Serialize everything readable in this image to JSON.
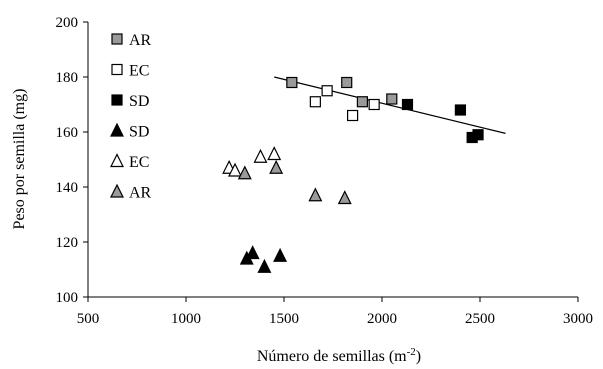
{
  "chart_data": {
    "type": "scatter",
    "title": "",
    "xlabel": "Número de semillas (m",
    "xlabel_sup": "-2",
    "xlabel_close": ")",
    "ylabel": "Peso por semilla (mg)",
    "xlim": [
      500,
      3000
    ],
    "ylim": [
      100,
      200
    ],
    "x_ticks": [
      500,
      1000,
      1500,
      2000,
      2500,
      3000
    ],
    "y_ticks": [
      100,
      120,
      140,
      160,
      180,
      200
    ],
    "grid": false,
    "legend_placement": "top-left",
    "colors": {
      "gray": "#9a9a9a",
      "black": "#000000",
      "white": "#ffffff"
    },
    "series": [
      {
        "name": "AR",
        "marker": "square",
        "fill": "gray",
        "points": [
          [
            1540,
            178
          ],
          [
            1820,
            178
          ],
          [
            1900,
            171
          ],
          [
            2050,
            172
          ]
        ]
      },
      {
        "name": "EC",
        "marker": "square",
        "fill": "white",
        "points": [
          [
            1660,
            171
          ],
          [
            1720,
            175
          ],
          [
            1850,
            166
          ],
          [
            1960,
            170
          ]
        ]
      },
      {
        "name": "SD",
        "marker": "square",
        "fill": "black",
        "points": [
          [
            2130,
            170
          ],
          [
            2400,
            168
          ],
          [
            2460,
            158
          ],
          [
            2490,
            159
          ]
        ]
      },
      {
        "name": "SD",
        "marker": "triangle",
        "fill": "black",
        "points": [
          [
            1310,
            114
          ],
          [
            1340,
            116
          ],
          [
            1400,
            111
          ],
          [
            1480,
            115
          ]
        ]
      },
      {
        "name": "EC",
        "marker": "triangle",
        "fill": "white",
        "points": [
          [
            1220,
            147
          ],
          [
            1250,
            146
          ],
          [
            1380,
            151
          ],
          [
            1450,
            152
          ]
        ]
      },
      {
        "name": "AR",
        "marker": "triangle",
        "fill": "gray",
        "points": [
          [
            1300,
            145
          ],
          [
            1460,
            147
          ],
          [
            1660,
            137
          ],
          [
            1810,
            136
          ]
        ]
      }
    ],
    "trendline": {
      "x": [
        1450,
        2630
      ],
      "y": [
        180,
        159.5
      ]
    }
  }
}
